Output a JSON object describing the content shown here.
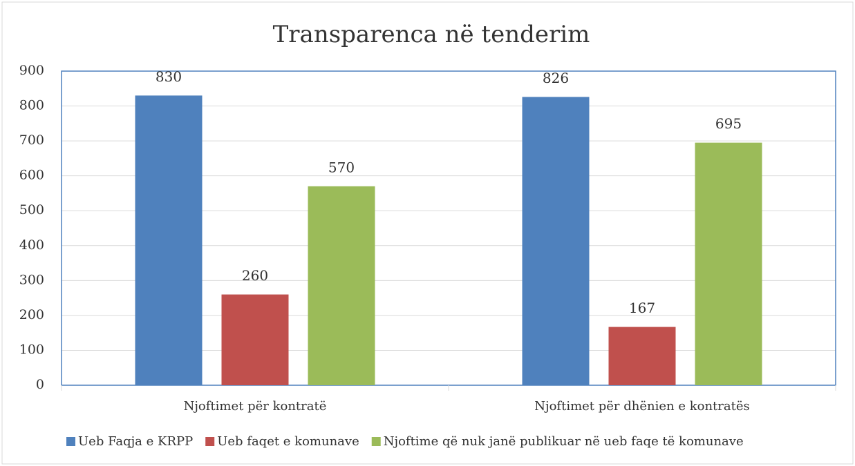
{
  "chart_data": {
    "type": "bar",
    "title": "Transparenca në tenderim",
    "categories": [
      "Njoftimet për kontratë",
      "Njoftimet për dhënien e kontratës"
    ],
    "series": [
      {
        "name": "Ueb Faqja e KRPP",
        "color": "#4f81bd",
        "values": [
          830,
          826
        ]
      },
      {
        "name": "Ueb faqet e komunave",
        "color": "#c0504d",
        "values": [
          260,
          167
        ]
      },
      {
        "name": "Njoftime që nuk janë publikuar në ueb faqe të komunave",
        "color": "#9bbb59",
        "values": [
          570,
          695
        ]
      }
    ],
    "ylim": [
      0,
      900
    ],
    "yticks": [
      0,
      100,
      200,
      300,
      400,
      500,
      600,
      700,
      800,
      900
    ],
    "grid": true,
    "legend": "bottom"
  }
}
